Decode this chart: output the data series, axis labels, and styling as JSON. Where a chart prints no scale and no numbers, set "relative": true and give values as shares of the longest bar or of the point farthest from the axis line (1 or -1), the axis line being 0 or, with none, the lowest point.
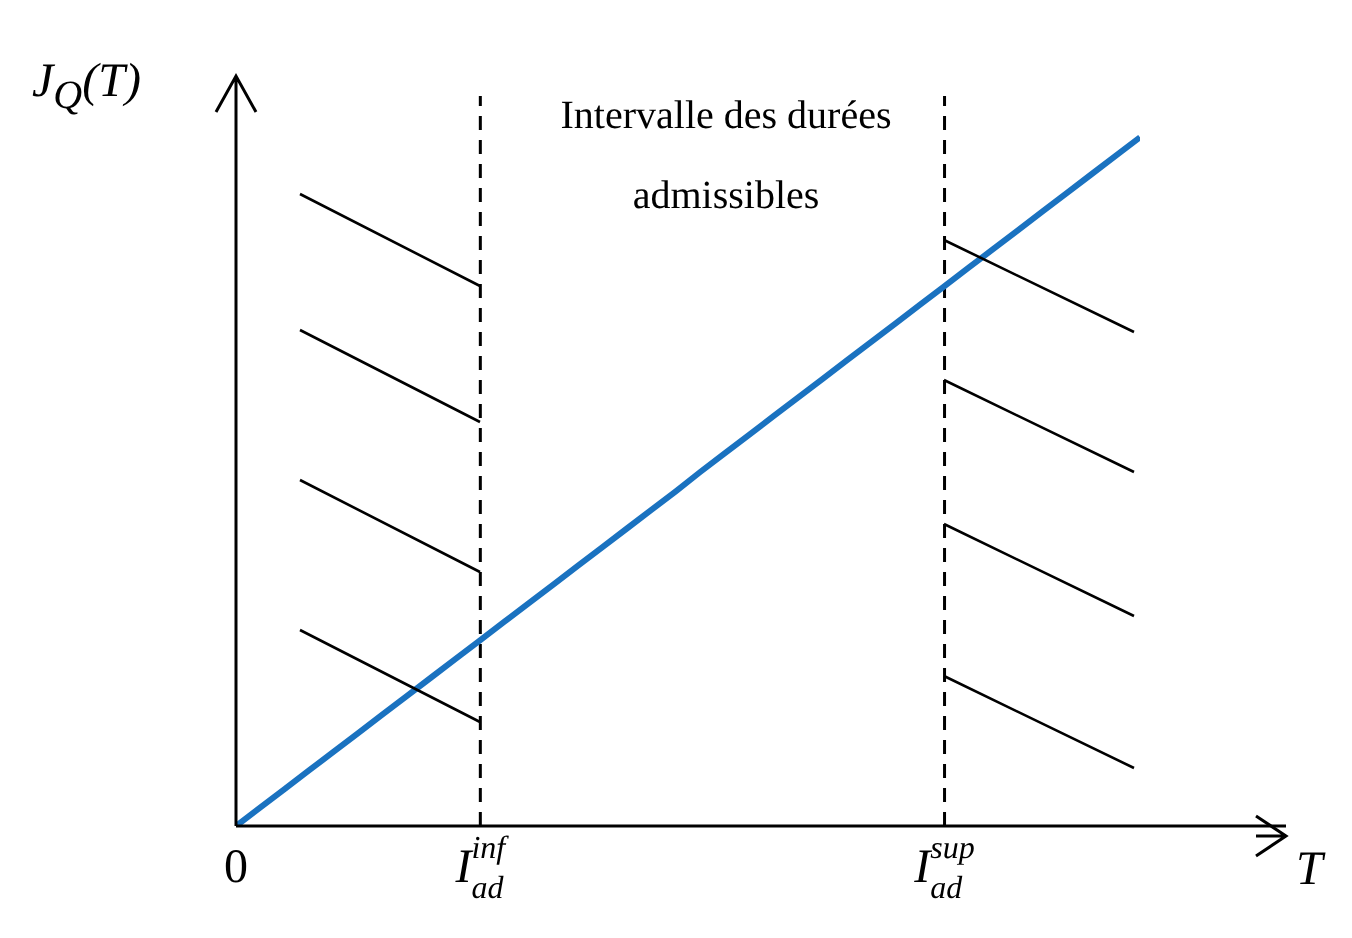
{
  "chart_data": {
    "type": "line",
    "relative": true,
    "ylabel": "J$_{Q}$(T)",
    "xlabel": "T",
    "categories": [
      "0",
      null,
      null,
      null,
      null,
      null,
      null,
      null,
      null,
      null,
      "I$_{ad}$$^{inf}$",
      null,
      null,
      null,
      null,
      null,
      null,
      null,
      null,
      null,
      null,
      null,
      null,
      null,
      null,
      null,
      null,
      null,
      null,
      "I$_{ad}$$^{sup}$",
      null,
      null,
      null,
      null,
      null,
      null,
      null,
      null
    ],
    "values": [
      0,
      0.027,
      0.054,
      0.081,
      0.108,
      0.135,
      0.162,
      0.189,
      0.216,
      0.243,
      0.27,
      0.297,
      0.324,
      0.351,
      0.378,
      0.405,
      0.432,
      0.459,
      0.486,
      0.514,
      0.541,
      0.568,
      0.595,
      0.622,
      0.649,
      0.676,
      0.703,
      0.73,
      0.757,
      0.784,
      0.811,
      0.838,
      0.865,
      0.892,
      0.919,
      0.946,
      0.973,
      1
    ],
    "color": "#1a72c0",
    "line_style": "solid",
    "marker": "none",
    "ref_lines": [
      {
        "axis": "x",
        "value": "I$_{ad}$$^{inf}$",
        "color": "#000000",
        "line_style": "dashed"
      },
      {
        "axis": "x",
        "value": "I$_{ad}$$^{sup}$",
        "color": "#000000",
        "line_style": "dashed"
      }
    ],
    "annotations": [
      "Intervalle des durées admissibles"
    ]
  }
}
